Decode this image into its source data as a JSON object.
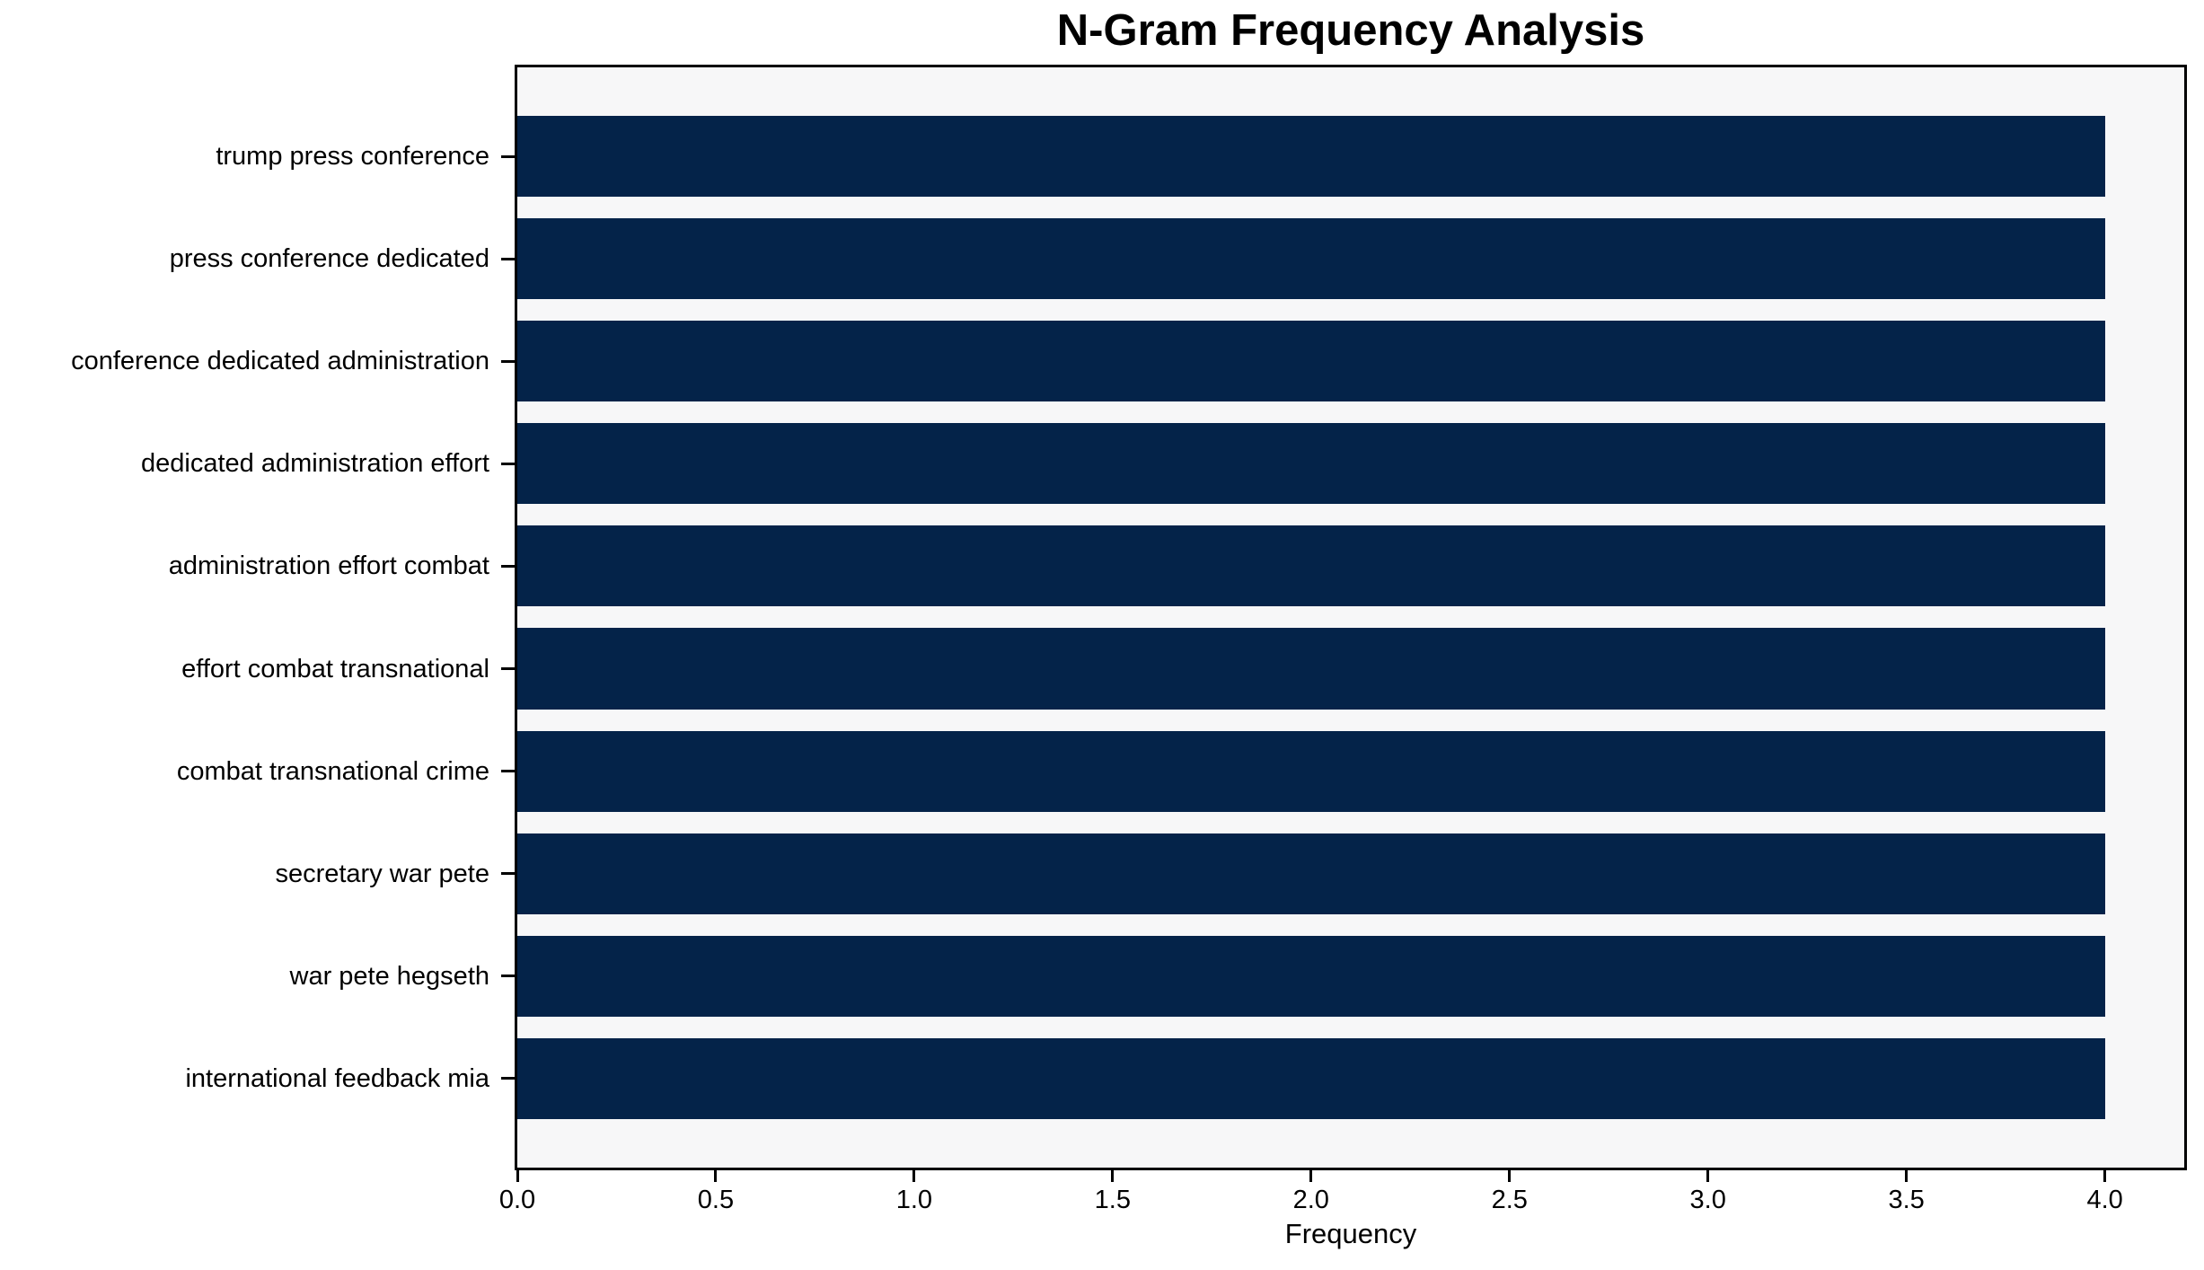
{
  "chart_data": {
    "type": "bar",
    "orientation": "horizontal",
    "title": "N-Gram Frequency Analysis",
    "xlabel": "Frequency",
    "categories": [
      "trump press conference",
      "press conference dedicated",
      "conference dedicated administration",
      "dedicated administration effort",
      "administration effort combat",
      "effort combat transnational",
      "combat transnational crime",
      "secretary war pete",
      "war pete hegseth",
      "international feedback mia"
    ],
    "values": [
      4,
      4,
      4,
      4,
      4,
      4,
      4,
      4,
      4,
      4
    ],
    "xlim": [
      0,
      4.2
    ],
    "xticks": [
      0.0,
      0.5,
      1.0,
      1.5,
      2.0,
      2.5,
      3.0,
      3.5,
      4.0
    ],
    "xtick_labels": [
      "0.0",
      "0.5",
      "1.0",
      "1.5",
      "2.0",
      "2.5",
      "3.0",
      "3.5",
      "4.0"
    ],
    "grid": false,
    "legend_position": "none",
    "colors": {
      "bar": "#042349",
      "plot_background": "#f7f7f8",
      "figure_background": "#ffffff",
      "text": "#000000",
      "spine": "#000000"
    }
  }
}
